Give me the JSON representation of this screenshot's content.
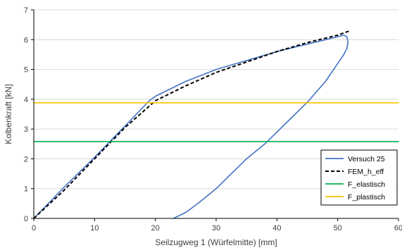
{
  "chart_data": {
    "type": "line",
    "title": "",
    "xlabel": "Seilzugweg 1 (Würfelmitte) [mm]",
    "ylabel": "Kolbenkraft [kN]",
    "xlim": [
      0,
      60
    ],
    "ylim": [
      0,
      7
    ],
    "xticks": [
      0,
      10,
      20,
      30,
      40,
      50,
      60
    ],
    "yticks": [
      0,
      1,
      2,
      3,
      4,
      5,
      6,
      7
    ],
    "grid": "horizontal",
    "legend_position": "bottom-right",
    "series": [
      {
        "name": "Versuch 25",
        "color": "#4472C4",
        "style": "solid",
        "x": [
          0,
          5,
          10,
          15,
          19,
          20,
          21,
          25,
          30,
          35,
          40,
          45,
          48,
          50,
          51,
          51.5,
          51.7,
          51.5,
          51,
          50,
          48,
          45,
          42,
          40,
          38,
          35,
          30,
          27,
          25,
          23.5,
          23
        ],
        "y": [
          0,
          1.05,
          2.05,
          3.1,
          3.95,
          4.1,
          4.2,
          4.6,
          5.0,
          5.3,
          5.6,
          5.85,
          6.0,
          6.1,
          6.15,
          6.1,
          5.9,
          5.7,
          5.5,
          5.2,
          4.6,
          3.9,
          3.3,
          2.9,
          2.5,
          2.0,
          1.0,
          0.5,
          0.2,
          0.05,
          0
        ]
      },
      {
        "name": "FEM_h_eff",
        "color": "#000000",
        "style": "dashed",
        "x": [
          0,
          5,
          10,
          15,
          20,
          25,
          30,
          35,
          40,
          45,
          50,
          52
        ],
        "y": [
          0,
          0.95,
          2.0,
          3.05,
          3.95,
          4.45,
          4.9,
          5.25,
          5.6,
          5.9,
          6.15,
          6.3
        ]
      },
      {
        "name": "F_elastisch",
        "color": "#00B050",
        "style": "solid",
        "x": [
          0,
          60
        ],
        "y": [
          2.58,
          2.58
        ]
      },
      {
        "name": "F_plastisch",
        "color": "#FFC000",
        "style": "solid",
        "x": [
          0,
          60
        ],
        "y": [
          3.88,
          3.88
        ]
      }
    ]
  }
}
